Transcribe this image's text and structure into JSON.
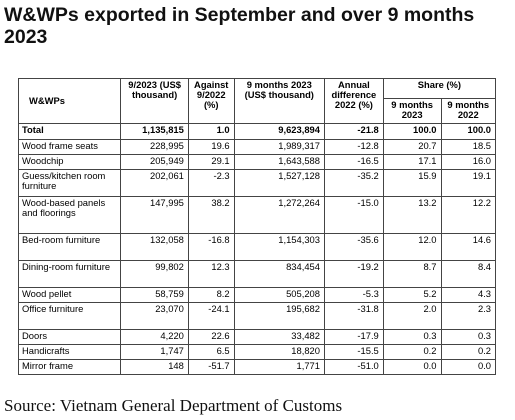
{
  "title": "W&WPs exported in September and over 9 months 2023",
  "table": {
    "headers": {
      "product": "W&WPs",
      "sep": "9/2023 (US$ thousand)",
      "against": "Against 9/2022 (%)",
      "nine_months": "9 months 2023 (US$ thousand)",
      "annual_diff": "Annual difference 2022 (%)",
      "share": "Share (%)",
      "share_2023": "9 months 2023",
      "share_2022": "9 months 2022"
    },
    "rows": [
      {
        "name": "Total",
        "sep": "1,135,815",
        "against": "1.0",
        "nine": "9,623,894",
        "diff": "-21.8",
        "s23": "100.0",
        "s22": "100.0"
      },
      {
        "name": "Wood frame seats",
        "sep": "228,995",
        "against": "19.6",
        "nine": "1,989,317",
        "diff": "-12.8",
        "s23": "20.7",
        "s22": "18.5"
      },
      {
        "name": "Woodchip",
        "sep": "205,949",
        "against": "29.1",
        "nine": "1,643,588",
        "diff": "-16.5",
        "s23": "17.1",
        "s22": "16.0"
      },
      {
        "name": "Guess/kitchen room furniture",
        "sep": "202,061",
        "against": "-2.3",
        "nine": "1,527,128",
        "diff": "-35.2",
        "s23": "15.9",
        "s22": "19.1"
      },
      {
        "name": "Wood-based panels and floorings",
        "sep": "147,995",
        "against": "38.2",
        "nine": "1,272,264",
        "diff": "-15.0",
        "s23": "13.2",
        "s22": "12.2"
      },
      {
        "name": "Bed-room furniture",
        "sep": "132,058",
        "against": "-16.8",
        "nine": "1,154,303",
        "diff": "-35.6",
        "s23": "12.0",
        "s22": "14.6"
      },
      {
        "name": "Dining-room furniture",
        "sep": "99,802",
        "against": "12.3",
        "nine": "834,454",
        "diff": "-19.2",
        "s23": "8.7",
        "s22": "8.4"
      },
      {
        "name": "Wood pellet",
        "sep": "58,759",
        "against": "8.2",
        "nine": "505,208",
        "diff": "-5.3",
        "s23": "5.2",
        "s22": "4.3"
      },
      {
        "name": "Office furniture",
        "sep": "23,070",
        "against": "-24.1",
        "nine": "195,682",
        "diff": "-31.8",
        "s23": "2.0",
        "s22": "2.3"
      },
      {
        "name": "Doors",
        "sep": "4,220",
        "against": "22.6",
        "nine": "33,482",
        "diff": "-17.9",
        "s23": "0.3",
        "s22": "0.3"
      },
      {
        "name": "Handicrafts",
        "sep": "1,747",
        "against": "6.5",
        "nine": "18,820",
        "diff": "-15.5",
        "s23": "0.2",
        "s22": "0.2"
      },
      {
        "name": "Mirror frame",
        "sep": "148",
        "against": "-51.7",
        "nine": "1,771",
        "diff": "-51.0",
        "s23": "0.0",
        "s22": "0.0"
      }
    ]
  },
  "source": "Source: Vietnam General Department of Customs"
}
